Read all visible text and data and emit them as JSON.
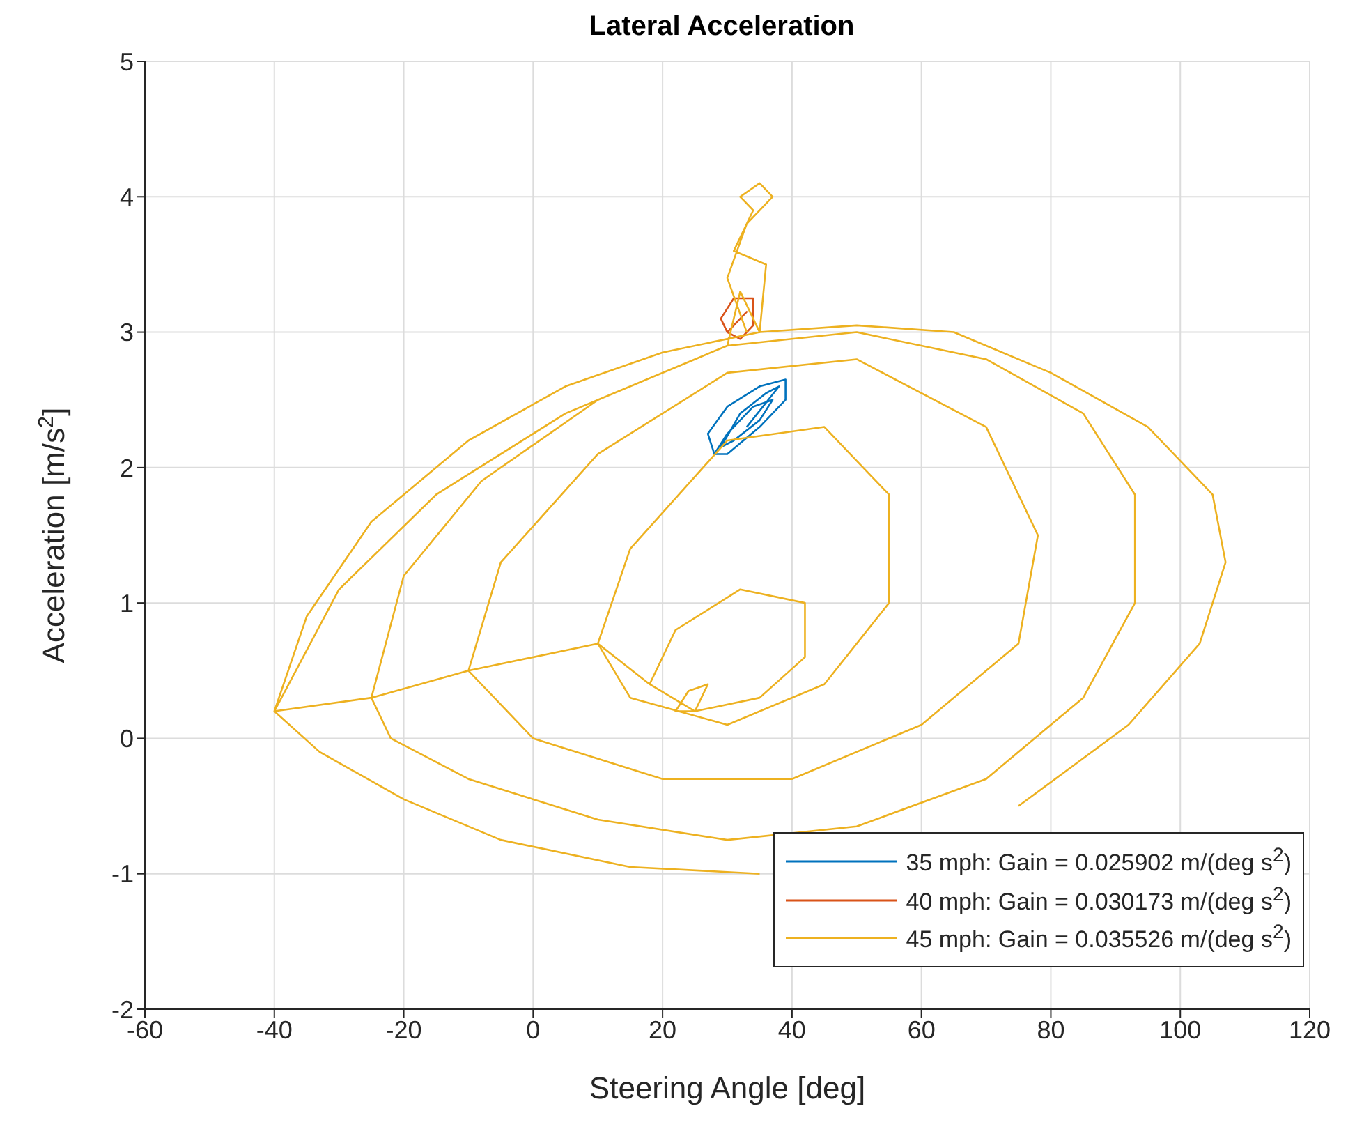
{
  "chart_data": {
    "type": "line",
    "title": "Lateral Acceleration",
    "xlabel": "Steering Angle [deg]",
    "ylabel": "Acceleration [m/s$^{2}$]",
    "xlim": [
      -60,
      120
    ],
    "xticks": [
      -60,
      -40,
      -20,
      0,
      20,
      40,
      60,
      80,
      100,
      120
    ],
    "ylim": [
      -2,
      5
    ],
    "yticks": [
      -2,
      -1,
      0,
      1,
      2,
      3,
      4,
      5
    ],
    "grid": true,
    "legend": "bottom right",
    "marker": "none",
    "line_style": "solid",
    "series": [
      {
        "name": "35 mph: Gain = 0.025902 m/(deg s$^{2}$)",
        "color": "#0072bd",
        "x": [
          28,
          27,
          30,
          35,
          39,
          39,
          35,
          30,
          28,
          30,
          34,
          37,
          35,
          31,
          29,
          32,
          36,
          38,
          33
        ],
        "values": [
          2.1,
          2.25,
          2.45,
          2.6,
          2.65,
          2.5,
          2.3,
          2.1,
          2.1,
          2.25,
          2.45,
          2.5,
          2.35,
          2.2,
          2.15,
          2.4,
          2.55,
          2.6,
          2.3
        ]
      },
      {
        "name": "40 mph: Gain = 0.030173 m/(deg s$^{2}$)",
        "color": "#d95319",
        "x": [
          30,
          29,
          31,
          34,
          34,
          32,
          30,
          33,
          31
        ],
        "values": [
          3.0,
          3.1,
          3.25,
          3.25,
          3.05,
          2.95,
          3.0,
          3.15,
          3.05
        ]
      },
      {
        "name": "45 mph: Gain = 0.035526 m/(deg s$^{2}$)",
        "color": "#edb120",
        "x": [
          25,
          27,
          24,
          22,
          25,
          18,
          22,
          32,
          42,
          42,
          35,
          25,
          18,
          10,
          15,
          30,
          45,
          55,
          55,
          45,
          30,
          15,
          10,
          -10,
          -5,
          10,
          30,
          50,
          70,
          78,
          75,
          60,
          40,
          20,
          0,
          -10,
          -25,
          -20,
          -8,
          10,
          30,
          50,
          70,
          85,
          93,
          93,
          85,
          70,
          50,
          30,
          10,
          -10,
          -22,
          -25,
          -40,
          -35,
          -25,
          -10,
          5,
          20,
          35,
          50,
          65,
          80,
          95,
          105,
          107,
          103,
          92,
          75,
          55,
          35,
          15,
          -5,
          -20,
          -33,
          -40,
          -30,
          -15,
          5,
          25,
          30,
          32,
          35,
          36,
          31,
          34,
          32,
          35,
          37,
          33,
          30,
          33
        ],
        "values": [
          0.2,
          0.4,
          0.35,
          0.2,
          0.2,
          0.4,
          0.8,
          1.1,
          1.0,
          0.6,
          0.3,
          0.2,
          0.4,
          0.7,
          1.4,
          2.2,
          2.3,
          1.8,
          1.0,
          0.4,
          0.1,
          0.3,
          0.7,
          0.5,
          1.3,
          2.1,
          2.7,
          2.8,
          2.3,
          1.5,
          0.7,
          0.1,
          -0.3,
          -0.3,
          0.0,
          0.5,
          0.3,
          1.2,
          1.9,
          2.5,
          2.9,
          3.0,
          2.8,
          2.4,
          1.8,
          1.0,
          0.3,
          -0.3,
          -0.65,
          -0.75,
          -0.6,
          -0.3,
          0.0,
          0.3,
          0.2,
          0.9,
          1.6,
          2.2,
          2.6,
          2.85,
          3.0,
          3.05,
          3.0,
          2.7,
          2.3,
          1.8,
          1.3,
          0.7,
          0.1,
          -0.5,
          null,
          -1.0,
          -0.95,
          -0.75,
          -0.45,
          -0.1,
          0.2,
          1.1,
          1.8,
          2.4,
          2.8,
          2.9,
          3.3,
          3.0,
          3.5,
          3.6,
          3.9,
          4.0,
          4.1,
          4.0,
          3.8,
          3.4,
          3.0
        ]
      }
    ]
  }
}
